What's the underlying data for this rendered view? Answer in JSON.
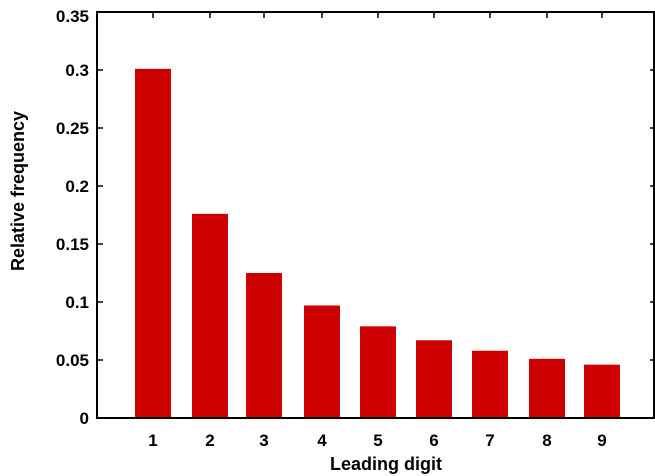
{
  "chart_data": {
    "type": "bar",
    "categories": [
      "1",
      "2",
      "3",
      "4",
      "5",
      "6",
      "7",
      "8",
      "9"
    ],
    "values": [
      0.301,
      0.176,
      0.125,
      0.097,
      0.079,
      0.067,
      0.058,
      0.051,
      0.046
    ],
    "xlabel": "Leading digit",
    "ylabel": "Relative frequency",
    "ylim": [
      0,
      0.35
    ],
    "yticks": [
      "0",
      "0.05",
      "0.1",
      "0.15",
      "0.2",
      "0.25",
      "0.3",
      "0.35"
    ],
    "grid": false,
    "bar_color": "#cc0000",
    "axis_color": "#000000"
  }
}
